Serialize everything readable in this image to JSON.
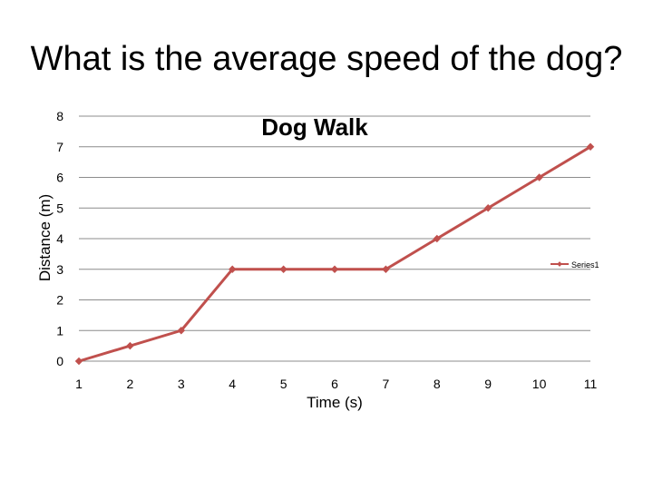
{
  "slide": {
    "title": "What is the average speed of the dog?"
  },
  "chart_data": {
    "type": "line",
    "title": "Dog Walk",
    "xlabel": "Time (s)",
    "ylabel": "Distance (m)",
    "categories": [
      "1",
      "2",
      "3",
      "4",
      "5",
      "6",
      "7",
      "8",
      "9",
      "10",
      "11"
    ],
    "series": [
      {
        "name": "Series1",
        "values": [
          0,
          0.5,
          1,
          3,
          3,
          3,
          3,
          4,
          5,
          6,
          7
        ],
        "color": "#c0504d"
      }
    ],
    "ylim": [
      0,
      8
    ],
    "yticks": [
      0,
      1,
      2,
      3,
      4,
      5,
      6,
      7,
      8
    ],
    "grid": true,
    "legend": "right"
  }
}
